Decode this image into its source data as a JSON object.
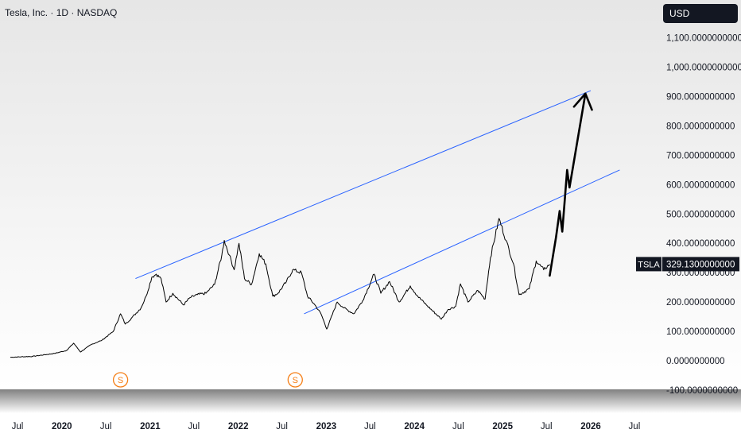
{
  "header": {
    "title": "Tesla, Inc. · 1D · NASDAQ",
    "currency_label": "USD"
  },
  "price_tag": {
    "symbol": "TSLA",
    "value": "329.1300000000",
    "price": 329.13
  },
  "colors": {
    "price_line": "#000000",
    "trend_line": "#2962ff",
    "dividend_marker": "#f57f17",
    "tag_bg": "#131722",
    "background_top": "#e6e6e6",
    "background_bottom": "#ffffff"
  },
  "chart_data": {
    "type": "line",
    "y_axis": {
      "min": -100,
      "max": 1180,
      "tick_values": [
        1100,
        1000,
        900,
        800,
        700,
        600,
        500,
        400,
        300,
        200,
        100,
        0,
        -100
      ],
      "tick_labels": [
        "1,100.0000000000",
        "1,000.0000000000",
        "900.0000000000",
        "800.0000000000",
        "700.0000000000",
        "600.0000000000",
        "500.0000000000",
        "400.0000000000",
        "300.0000000000",
        "200.0000000000",
        "100.0000000000",
        "0.0000000000",
        "-100.0000000000"
      ]
    },
    "x_axis": {
      "min": "2019-06-01",
      "max": "2026-08-01",
      "ticks": [
        {
          "date": "2019-07-01",
          "label": "Jul"
        },
        {
          "date": "2020-01-01",
          "label": "2020"
        },
        {
          "date": "2020-07-01",
          "label": "Jul"
        },
        {
          "date": "2021-01-01",
          "label": "2021"
        },
        {
          "date": "2021-07-01",
          "label": "Jul"
        },
        {
          "date": "2022-01-01",
          "label": "2022"
        },
        {
          "date": "2022-07-01",
          "label": "Jul"
        },
        {
          "date": "2023-01-01",
          "label": "2023"
        },
        {
          "date": "2023-07-01",
          "label": "Jul"
        },
        {
          "date": "2024-01-01",
          "label": "2024"
        },
        {
          "date": "2024-07-01",
          "label": "Jul"
        },
        {
          "date": "2025-01-01",
          "label": "2025"
        },
        {
          "date": "2025-07-01",
          "label": "Jul"
        },
        {
          "date": "2026-01-01",
          "label": "2026"
        },
        {
          "date": "2026-07-01",
          "label": "Jul"
        }
      ]
    },
    "series": [
      {
        "points": [
          [
            "2019-06-01",
            12
          ],
          [
            "2019-09-01",
            15
          ],
          [
            "2019-12-01",
            25
          ],
          [
            "2020-01-20",
            35
          ],
          [
            "2020-02-19",
            60
          ],
          [
            "2020-03-18",
            30
          ],
          [
            "2020-05-01",
            55
          ],
          [
            "2020-06-15",
            70
          ],
          [
            "2020-08-01",
            100
          ],
          [
            "2020-08-31",
            160
          ],
          [
            "2020-09-20",
            125
          ],
          [
            "2020-10-15",
            145
          ],
          [
            "2020-11-24",
            180
          ],
          [
            "2020-12-15",
            220
          ],
          [
            "2021-01-08",
            285
          ],
          [
            "2021-01-26",
            295
          ],
          [
            "2021-02-15",
            280
          ],
          [
            "2021-03-08",
            200
          ],
          [
            "2021-04-05",
            230
          ],
          [
            "2021-05-19",
            190
          ],
          [
            "2021-06-15",
            215
          ],
          [
            "2021-07-15",
            225
          ],
          [
            "2021-08-20",
            230
          ],
          [
            "2021-09-25",
            260
          ],
          [
            "2021-10-25",
            360
          ],
          [
            "2021-11-04",
            410
          ],
          [
            "2021-11-25",
            360
          ],
          [
            "2021-12-15",
            310
          ],
          [
            "2022-01-04",
            400
          ],
          [
            "2022-01-27",
            280
          ],
          [
            "2022-02-25",
            260
          ],
          [
            "2022-03-29",
            365
          ],
          [
            "2022-04-25",
            330
          ],
          [
            "2022-05-24",
            220
          ],
          [
            "2022-06-15",
            230
          ],
          [
            "2022-07-20",
            270
          ],
          [
            "2022-08-15",
            310
          ],
          [
            "2022-09-20",
            300
          ],
          [
            "2022-10-15",
            220
          ],
          [
            "2022-11-15",
            190
          ],
          [
            "2022-12-10",
            160
          ],
          [
            "2023-01-03",
            108
          ],
          [
            "2023-02-15",
            200
          ],
          [
            "2023-03-15",
            180
          ],
          [
            "2023-04-25",
            160
          ],
          [
            "2023-06-01",
            205
          ],
          [
            "2023-07-18",
            295
          ],
          [
            "2023-08-15",
            230
          ],
          [
            "2023-09-20",
            270
          ],
          [
            "2023-10-30",
            200
          ],
          [
            "2023-12-15",
            255
          ],
          [
            "2024-01-15",
            220
          ],
          [
            "2024-02-20",
            190
          ],
          [
            "2024-04-22",
            142
          ],
          [
            "2024-05-20",
            175
          ],
          [
            "2024-06-20",
            185
          ],
          [
            "2024-07-10",
            262
          ],
          [
            "2024-08-10",
            200
          ],
          [
            "2024-09-20",
            240
          ],
          [
            "2024-10-20",
            210
          ],
          [
            "2024-11-11",
            350
          ],
          [
            "2024-12-17",
            485
          ],
          [
            "2025-01-15",
            410
          ],
          [
            "2025-02-15",
            330
          ],
          [
            "2025-03-10",
            225
          ],
          [
            "2025-04-21",
            245
          ],
          [
            "2025-05-20",
            340
          ],
          [
            "2025-06-20",
            310
          ],
          [
            "2025-07-15",
            329
          ]
        ]
      }
    ],
    "annotations": {
      "trend_lines": [
        {
          "from": [
            "2020-11-01",
            280
          ],
          "to": [
            "2026-01-01",
            920
          ]
        },
        {
          "from": [
            "2022-10-01",
            160
          ],
          "to": [
            "2026-05-01",
            650
          ]
        }
      ],
      "projection_arrow": [
        [
          "2025-07-15",
          290
        ],
        [
          "2025-08-10",
          420
        ],
        [
          "2025-08-25",
          510
        ],
        [
          "2025-09-05",
          440
        ],
        [
          "2025-09-25",
          650
        ],
        [
          "2025-10-05",
          590
        ],
        [
          "2025-12-10",
          910
        ]
      ],
      "dividend_markers": [
        {
          "date": "2020-08-31",
          "label": "S"
        },
        {
          "date": "2022-08-25",
          "label": "S"
        }
      ]
    },
    "title": "",
    "xlabel": "",
    "ylabel": "",
    "grid": false,
    "legend": "none"
  }
}
